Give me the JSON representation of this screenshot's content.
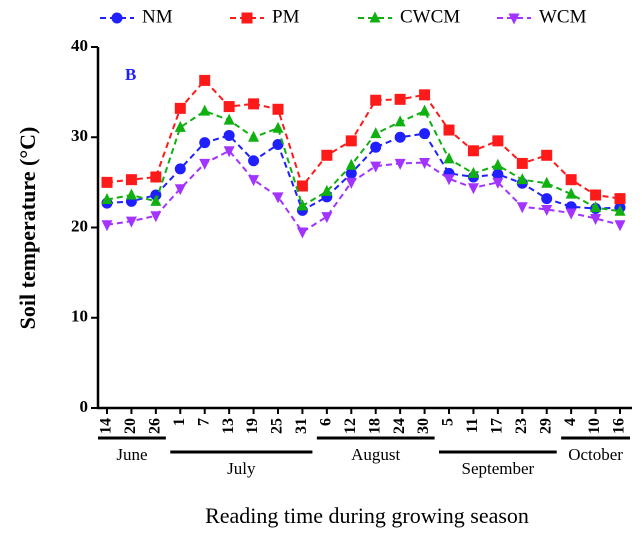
{
  "chart_data": {
    "type": "line",
    "panel_label": "B",
    "ylabel": "Soil temperature (°C)",
    "xlabel": "Reading time during growing season",
    "categories": [
      "14",
      "20",
      "26",
      "1",
      "7",
      "13",
      "19",
      "25",
      "31",
      "6",
      "12",
      "18",
      "24",
      "30",
      "5",
      "11",
      "17",
      "23",
      "29",
      "4",
      "10",
      "16"
    ],
    "groups": [
      "June",
      "July",
      "August",
      "September",
      "October"
    ],
    "ylim": [
      0,
      40
    ],
    "yticks": [
      0,
      10,
      20,
      30,
      40
    ],
    "series": [
      {
        "name": "NM",
        "color": "#1f1fff",
        "marker": "circle",
        "values": [
          22.7,
          22.9,
          23.6,
          26.5,
          29.4,
          30.2,
          27.4,
          29.2,
          21.9,
          23.4,
          26.0,
          28.9,
          30.0,
          30.4,
          26.0,
          25.6,
          25.9,
          24.9,
          23.2,
          22.3,
          22.1,
          22.2
        ]
      },
      {
        "name": "PM",
        "color": "#ff1a1a",
        "marker": "square",
        "values": [
          25.0,
          25.3,
          25.6,
          33.2,
          36.3,
          33.4,
          33.7,
          33.1,
          24.6,
          28.0,
          29.6,
          34.1,
          34.2,
          34.7,
          30.8,
          28.5,
          29.6,
          27.1,
          28.0,
          25.3,
          23.6,
          23.2
        ]
      },
      {
        "name": "CWCM",
        "color": "#10b010",
        "marker": "triangle-up",
        "values": [
          23.1,
          23.6,
          22.9,
          31.1,
          32.9,
          31.9,
          30.0,
          31.0,
          22.4,
          24.0,
          26.9,
          30.4,
          31.7,
          32.9,
          27.6,
          26.0,
          26.9,
          25.3,
          24.9,
          23.7,
          22.2,
          21.8
        ]
      },
      {
        "name": "WCM",
        "color": "#a333ff",
        "marker": "triangle-down",
        "values": [
          20.3,
          20.7,
          21.3,
          24.3,
          27.1,
          28.5,
          25.3,
          23.4,
          19.5,
          21.2,
          25.0,
          26.8,
          27.1,
          27.2,
          25.4,
          24.4,
          25.0,
          22.3,
          22.0,
          21.6,
          21.0,
          20.3
        ]
      }
    ]
  }
}
